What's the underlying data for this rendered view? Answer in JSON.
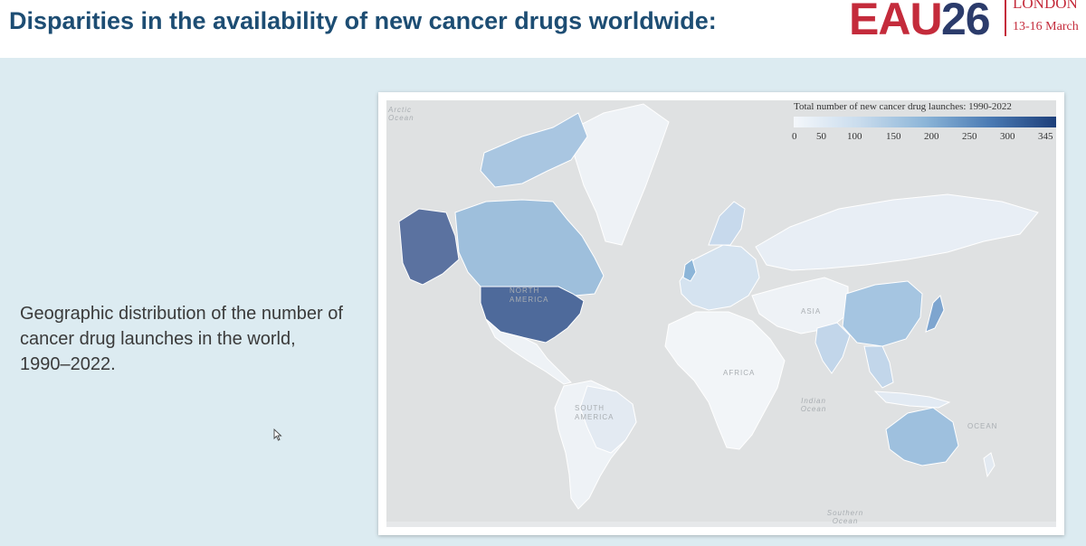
{
  "slide": {
    "title": "Disparities in the availability of new cancer drugs worldwide:",
    "description": "Geographic distribution of the number of cancer drug launches in the world, 1990–2022."
  },
  "logo": {
    "eau": "EAU",
    "year": "26",
    "city": "LONDON",
    "dates": "13-16 March"
  },
  "map": {
    "legend_title": "Total number of new cancer drug launches: 1990-2022",
    "legend_ticks": [
      "0",
      "50",
      "100",
      "150",
      "200",
      "250",
      "300",
      "345"
    ],
    "color_scale": [
      "#f4f7fb",
      "#c9dced",
      "#8cb5d8",
      "#4a7ab3",
      "#1d3f7a"
    ],
    "continent_labels": {
      "north_america": "NORTH AMERICA",
      "south_america": "SOUTH AMERICA",
      "africa": "AFRICA",
      "asia": "ASIA",
      "oceania": "OCEAN"
    },
    "ocean_labels": {
      "arctic": "Arctic Ocean",
      "indian": "Indian Ocean",
      "southern": "Southern Ocean"
    },
    "highlighted_regions": [
      {
        "region": "United States",
        "level": "highest",
        "color": "#4e6a9b"
      },
      {
        "region": "Alaska",
        "level": "highest",
        "color": "#5b72a0"
      },
      {
        "region": "Canada",
        "level": "medium",
        "color": "#9ebfdc"
      },
      {
        "region": "Japan",
        "level": "medium-high",
        "color": "#7ea5cf"
      },
      {
        "region": "Australia",
        "level": "medium",
        "color": "#9ec0de"
      },
      {
        "region": "China",
        "level": "medium",
        "color": "#a5c5e1"
      },
      {
        "region": "Greenland",
        "level": "low",
        "color": "#eef2f6"
      }
    ]
  }
}
